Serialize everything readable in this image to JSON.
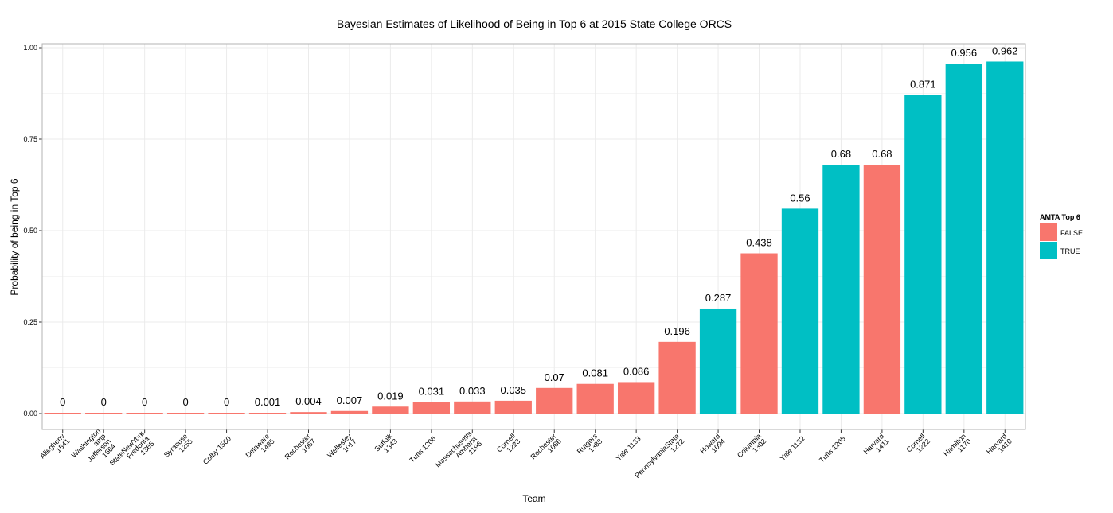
{
  "chart_data": {
    "type": "bar",
    "title": "Bayesian Estimates of Likelihood of Being in Top 6 at 2015 State College ORCS",
    "xlabel": "Team",
    "ylabel": "Probability of being in Top 6",
    "ylim": [
      0,
      1
    ],
    "yticks": [
      "0.00",
      "0.25",
      "0.50",
      "0.75",
      "1.00"
    ],
    "ytick_values": [
      0,
      0.25,
      0.5,
      0.75,
      1.0
    ],
    "grid": true,
    "legend": {
      "title": "AMTA Top 6",
      "position": "right",
      "entries": [
        {
          "label": "FALSE",
          "color": "#F8766D"
        },
        {
          "label": "TRUE",
          "color": "#00BFC4"
        }
      ]
    },
    "categories": [
      "Allegheny\n1541",
      "Washington\namp\nJefferson\n1664",
      "StateNewYork\nFredonia\n1365",
      "Syracuse\n1255",
      "Colby 1560",
      "Delaware\n1435",
      "Rochester\n1087",
      "Wellesley\n1017",
      "Suffolk\n1343",
      "Tufts 1206",
      "Massachusetts\nAmherst\n1196",
      "Cornell\n1223",
      "Rochester\n1086",
      "Rutgers\n1388",
      "Yale 1133",
      "PennsylvaniaState\n1272",
      "Howard\n1094",
      "Columbia\n1302",
      "Yale 1132",
      "Tufts 1205",
      "Harvard\n1411",
      "Cornell\n1222",
      "Hamilton\n1170",
      "Harvard\n1410"
    ],
    "values": [
      0,
      0,
      0,
      0,
      0,
      0.001,
      0.004,
      0.007,
      0.019,
      0.031,
      0.033,
      0.035,
      0.07,
      0.081,
      0.086,
      0.196,
      0.287,
      0.438,
      0.56,
      0.68,
      0.68,
      0.871,
      0.956,
      0.962
    ],
    "value_labels": [
      "0",
      "0",
      "0",
      "0",
      "0",
      "0.001",
      "0.004",
      "0.007",
      "0.019",
      "0.031",
      "0.033",
      "0.035",
      "0.07",
      "0.081",
      "0.086",
      "0.196",
      "0.287",
      "0.438",
      "0.56",
      "0.68",
      "0.68",
      "0.871",
      "0.956",
      "0.962"
    ],
    "amta_top6": [
      "FALSE",
      "FALSE",
      "FALSE",
      "FALSE",
      "FALSE",
      "FALSE",
      "FALSE",
      "FALSE",
      "FALSE",
      "FALSE",
      "FALSE",
      "FALSE",
      "FALSE",
      "FALSE",
      "FALSE",
      "FALSE",
      "TRUE",
      "FALSE",
      "TRUE",
      "TRUE",
      "FALSE",
      "TRUE",
      "TRUE",
      "TRUE"
    ],
    "colors": {
      "FALSE": "#F8766D",
      "TRUE": "#00BFC4",
      "grid": "#EBEBEB",
      "panel_border": "#B3B3B3"
    }
  }
}
